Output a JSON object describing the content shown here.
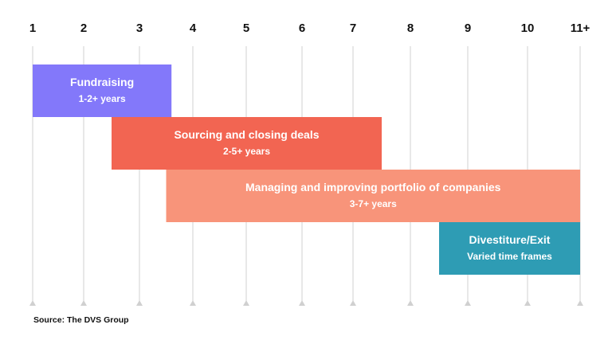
{
  "chart_data": {
    "type": "gantt",
    "x_ticks": [
      "1",
      "2",
      "3",
      "4",
      "5",
      "6",
      "7",
      "8",
      "9",
      "10",
      "11+"
    ],
    "tasks": [
      {
        "title": "Fundraising",
        "subtitle": "1-2+ years",
        "start": 1,
        "end": 3.6,
        "color": "#8378FA"
      },
      {
        "title": "Sourcing and closing deals",
        "subtitle": "2-5+ years",
        "start": 2.5,
        "end": 7.5,
        "color": "#F26552"
      },
      {
        "title": "Managing and improving portfolio of companies",
        "subtitle": "3-7+ years",
        "start": 3.5,
        "end": 11,
        "color": "#F8947A"
      },
      {
        "title": "Divestiture/Exit",
        "subtitle": "Varied time frames",
        "start": 8.5,
        "end": 11,
        "color": "#2E9CB4"
      }
    ],
    "gridline_color": "#d0d0d0",
    "grid": true
  },
  "source": "Source: The DVS Group"
}
